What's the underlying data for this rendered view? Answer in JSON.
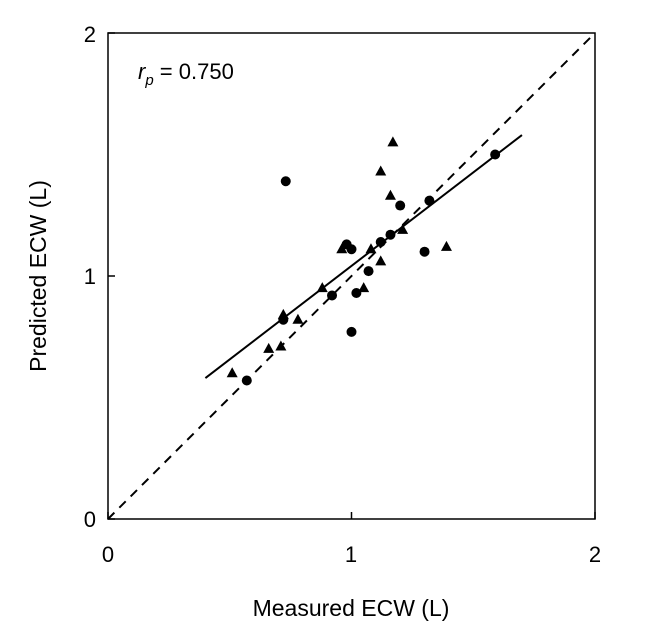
{
  "chart_data": {
    "type": "scatter",
    "xlabel": "Measured ECW (L)",
    "ylabel": "Predicted ECW (L)",
    "xlim": [
      0,
      2
    ],
    "ylim": [
      0,
      2
    ],
    "xticks": [
      "0",
      "1",
      "2"
    ],
    "yticks": [
      "0",
      "1",
      "2"
    ],
    "annotation": {
      "r": "r",
      "sub": "p",
      "rest": " = 0.750"
    },
    "series": [
      {
        "marker": "circle",
        "points": [
          [
            0.57,
            0.57
          ],
          [
            0.72,
            0.82
          ],
          [
            0.73,
            1.39
          ],
          [
            0.92,
            0.92
          ],
          [
            0.98,
            1.13
          ],
          [
            1.0,
            1.11
          ],
          [
            1.0,
            0.77
          ],
          [
            1.02,
            0.93
          ],
          [
            1.07,
            1.02
          ],
          [
            1.12,
            1.14
          ],
          [
            1.16,
            1.17
          ],
          [
            1.2,
            1.29
          ],
          [
            1.3,
            1.1
          ],
          [
            1.32,
            1.31
          ],
          [
            1.59,
            1.5
          ]
        ]
      },
      {
        "marker": "triangle",
        "points": [
          [
            0.51,
            0.6
          ],
          [
            0.66,
            0.7
          ],
          [
            0.71,
            0.71
          ],
          [
            0.72,
            0.84
          ],
          [
            0.78,
            0.82
          ],
          [
            0.88,
            0.95
          ],
          [
            0.96,
            1.11
          ],
          [
            1.05,
            0.95
          ],
          [
            1.08,
            1.11
          ],
          [
            1.12,
            1.06
          ],
          [
            1.12,
            1.43
          ],
          [
            1.16,
            1.33
          ],
          [
            1.17,
            1.55
          ],
          [
            1.21,
            1.19
          ],
          [
            1.39,
            1.12
          ]
        ]
      }
    ],
    "identity_line": {
      "x": [
        0,
        2
      ],
      "y": [
        0,
        2
      ]
    },
    "regression_line": {
      "x": [
        0.4,
        1.7
      ],
      "y": [
        0.58,
        1.58
      ]
    }
  }
}
